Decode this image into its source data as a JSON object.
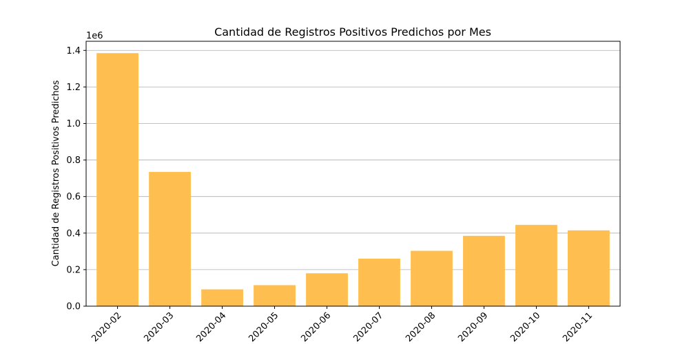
{
  "chart_data": {
    "type": "bar",
    "title": "Cantidad de Registros Positivos Predichos por Mes",
    "xlabel": "",
    "ylabel": "Cantidad de Registros Positivos Predichos",
    "y_scale_label": "1e6",
    "y_scale_factor": 1000000,
    "ylim": [
      0,
      1450000
    ],
    "y_ticks": [
      0,
      200000,
      400000,
      600000,
      800000,
      1000000,
      1200000,
      1400000
    ],
    "y_tick_labels": [
      "0.0",
      "0.2",
      "0.4",
      "0.6",
      "0.8",
      "1.0",
      "1.2",
      "1.4"
    ],
    "categories": [
      "2020-02",
      "2020-03",
      "2020-04",
      "2020-05",
      "2020-06",
      "2020-07",
      "2020-08",
      "2020-09",
      "2020-10",
      "2020-11"
    ],
    "values": [
      1385000,
      735000,
      92000,
      115000,
      180000,
      260000,
      303000,
      385000,
      445000,
      415000
    ],
    "bar_color": "#FFBE50",
    "grid": "horizontal",
    "x_tick_rotation": 45
  }
}
